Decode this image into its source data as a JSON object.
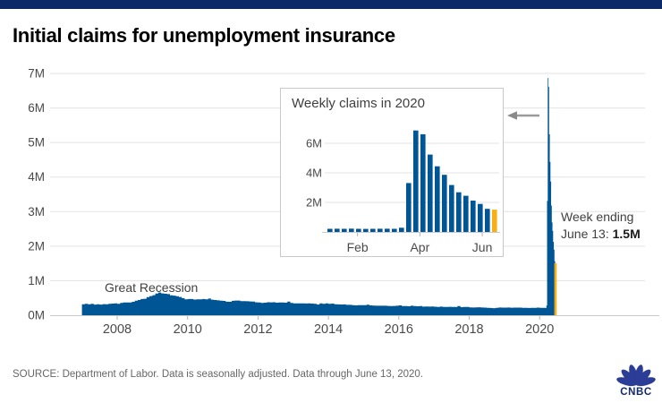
{
  "meta": {
    "brand": "CNBC"
  },
  "header": {
    "title": "Initial claims for unemployment insurance"
  },
  "footer": {
    "source": "SOURCE: Department of Labor. Data is seasonally adjusted. Data through June 13, 2020."
  },
  "colors": {
    "topbar_navy": "#0b2a67",
    "series_blue": "#005594",
    "highlight_gold": "#f6b015",
    "gridline": "#e3e3e3",
    "axis_line": "#c9c9c9",
    "tick": "#b5b5b5",
    "axis_label": "#4a4a4a",
    "annotation": "#404040",
    "logo_feather": "#2b3d96",
    "logo_text": "#122a6d"
  },
  "annotations": {
    "great_recession": "Great Recession",
    "week_ending_line1": "Week ending",
    "week_ending_line2_prefix": "June 13: ",
    "week_ending_value": "1.5M"
  },
  "chart_data": [
    {
      "type": "area",
      "title": "Initial claims for unemployment insurance",
      "units": "weekly initial claims, thousands",
      "xlabel": "",
      "ylabel": "",
      "ylim": [
        0,
        7000000
      ],
      "y_tick_labels": [
        "0M",
        "1M",
        "2M",
        "3M",
        "4M",
        "5M",
        "6M",
        "7M"
      ],
      "x_tick_labels": [
        "2008",
        "2010",
        "2012",
        "2014",
        "2016",
        "2018",
        "2020"
      ],
      "x_range": [
        "2007-01",
        "2020-06-13"
      ],
      "grid": true,
      "series_monthly": {
        "start": "2007-01",
        "end": "2020-02",
        "values_thousands": [
          318,
          328,
          318,
          330,
          308,
          316,
          308,
          322,
          318,
          330,
          338,
          346,
          332,
          354,
          368,
          372,
          368,
          388,
          420,
          442,
          468,
          478,
          524,
          554,
          582,
          630,
          658,
          632,
          622,
          612,
          578,
          568,
          550,
          528,
          494,
          460,
          468,
          468,
          454,
          458,
          458,
          468,
          458,
          482,
          452,
          442,
          430,
          420,
          414,
          392,
          390,
          418,
          426,
          424,
          408,
          410,
          404,
          398,
          394,
          374,
          368,
          354,
          362,
          376,
          374,
          376,
          364,
          368,
          368,
          364,
          394,
          358,
          346,
          344,
          344,
          344,
          340,
          344,
          338,
          330,
          310,
          344,
          330,
          344,
          330,
          336,
          320,
          314,
          310,
          314,
          302,
          300,
          294,
          286,
          290,
          290,
          292,
          304,
          284,
          280,
          274,
          276,
          274,
          274,
          270,
          264,
          270,
          276,
          284,
          264,
          264,
          258,
          274,
          268,
          258,
          264,
          250,
          254,
          250,
          254,
          246,
          240,
          250,
          242,
          240,
          244,
          240,
          238,
          268,
          234,
          240,
          242,
          226,
          224,
          226,
          230,
          224,
          220,
          216,
          210,
          206,
          214,
          224,
          220,
          220,
          224,
          218,
          220,
          220,
          220,
          214,
          216,
          210,
          214,
          216,
          220,
          214,
          212
        ]
      },
      "series_weekly": {
        "start": "2020-03-07",
        "end": "2020-06-13",
        "values_thousands": [
          211,
          282,
          3307,
          6867,
          6615,
          5237,
          4442,
          3867,
          3176,
          2687,
          2446,
          2123,
          1897,
          1566,
          1508
        ]
      },
      "highlight_last_point": {
        "label": "Week ending June 13",
        "value_thousands": 1508,
        "color": "gold"
      }
    },
    {
      "type": "bar",
      "title": "Weekly claims in 2020",
      "units": "weekly initial claims, thousands",
      "ylim": [
        0,
        7200000
      ],
      "y_tick_labels": [
        "2M",
        "4M",
        "6M"
      ],
      "x_tick_labels": [
        "Feb",
        "Apr",
        "Jun"
      ],
      "grid": true,
      "legend": "none",
      "weeks_ending_start": "2020-01-04",
      "values_thousands": [
        212,
        220,
        211,
        223,
        212,
        204,
        215,
        220,
        217,
        211,
        282,
        3307,
        6867,
        6615,
        5237,
        4442,
        3867,
        3176,
        2687,
        2446,
        2123,
        1897,
        1566,
        1508
      ],
      "last_bar_color": "gold"
    }
  ]
}
